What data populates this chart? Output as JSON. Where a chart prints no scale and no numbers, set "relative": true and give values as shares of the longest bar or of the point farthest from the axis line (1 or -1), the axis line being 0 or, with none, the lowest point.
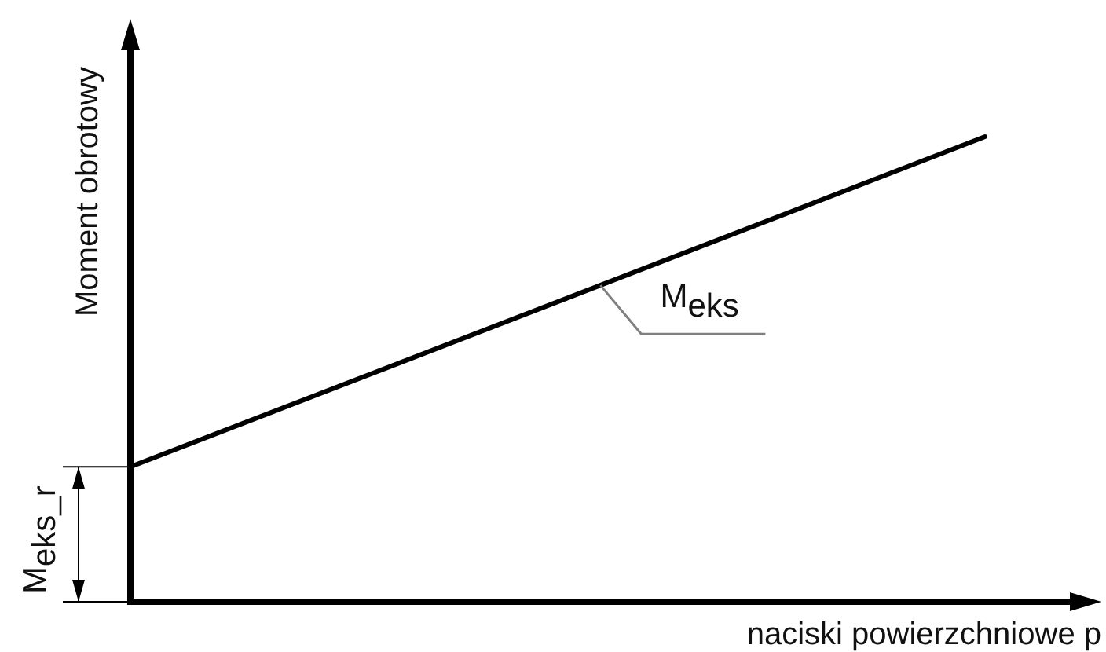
{
  "chart_data": {
    "type": "line",
    "relative": true,
    "xlabel": "naciski powierzchniowe p",
    "ylabel": "Moment obrotowy",
    "categories": [
      null,
      null
    ],
    "series": [
      {
        "name": "M$_{eks}$",
        "color": "#000000",
        "values": [
          0.29,
          1
        ]
      }
    ],
    "annotations": [
      "M$_{eks_r}$"
    ]
  }
}
